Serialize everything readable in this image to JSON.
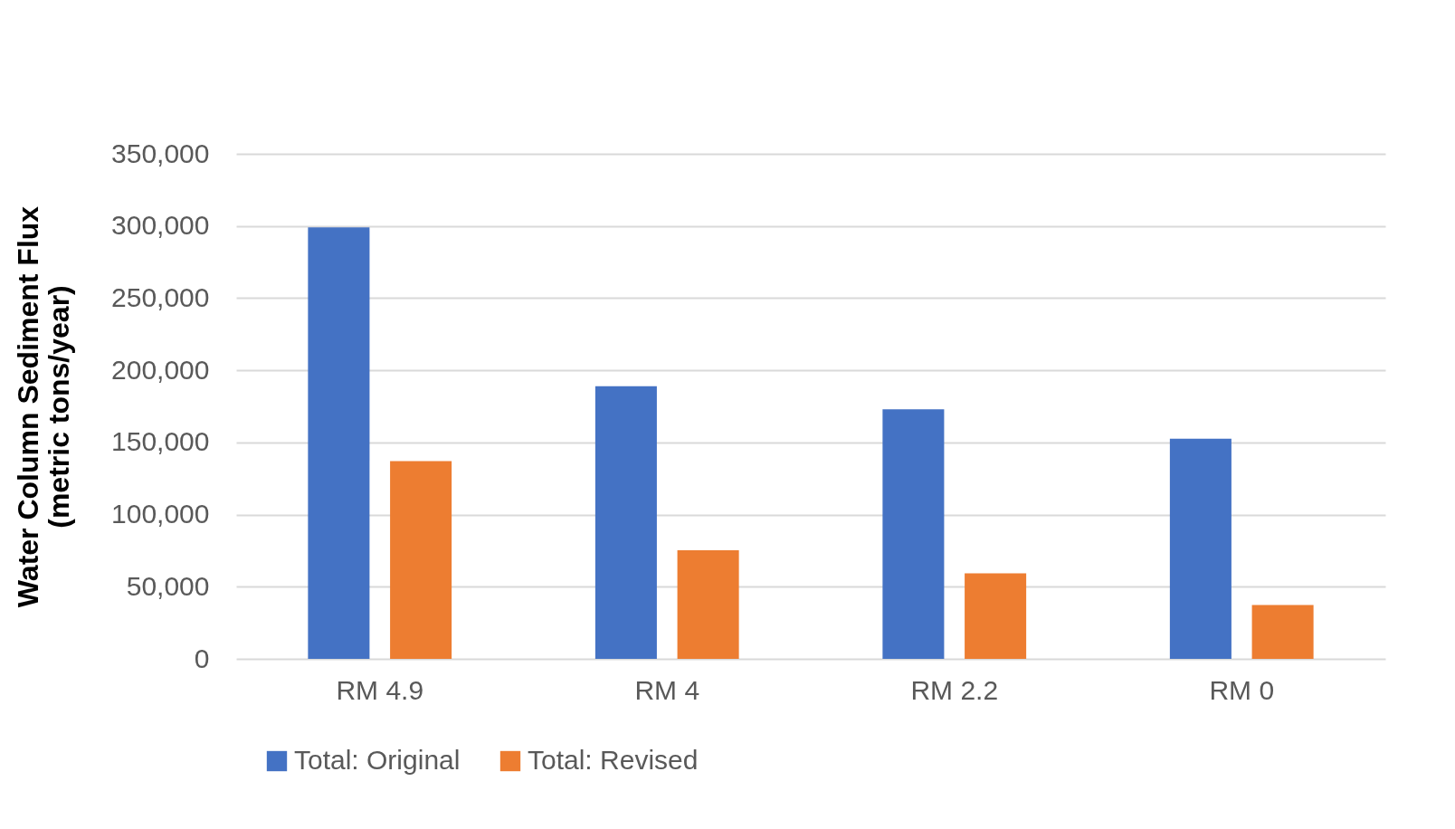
{
  "chart_data": {
    "type": "bar",
    "ylabel": "Water Column Sediment Flux\n(metric tons/year)",
    "categories": [
      "RM 4.9",
      "RM 4",
      "RM 2.2",
      "RM 0"
    ],
    "series": [
      {
        "name": "Total: Original",
        "color": "#4472c4",
        "values": [
          299000,
          189000,
          173000,
          152500
        ]
      },
      {
        "name": "Total: Revised",
        "color": "#ed7d31",
        "values": [
          137000,
          75300,
          59200,
          37300
        ]
      }
    ],
    "ylim": [
      0,
      350000
    ],
    "yticks": [
      0,
      {
        "value": 50000,
        "label": "50,000"
      },
      {
        "value": 100000,
        "label": "100,000"
      },
      {
        "value": 150000,
        "label": "150,000"
      },
      {
        "value": 200000,
        "label": "200,000"
      },
      {
        "value": 250000,
        "label": "250,000"
      },
      {
        "value": 300000,
        "label": "300,000"
      },
      {
        "value": 350000,
        "label": "350,000"
      }
    ],
    "grid": "y",
    "legend": "bottom"
  }
}
